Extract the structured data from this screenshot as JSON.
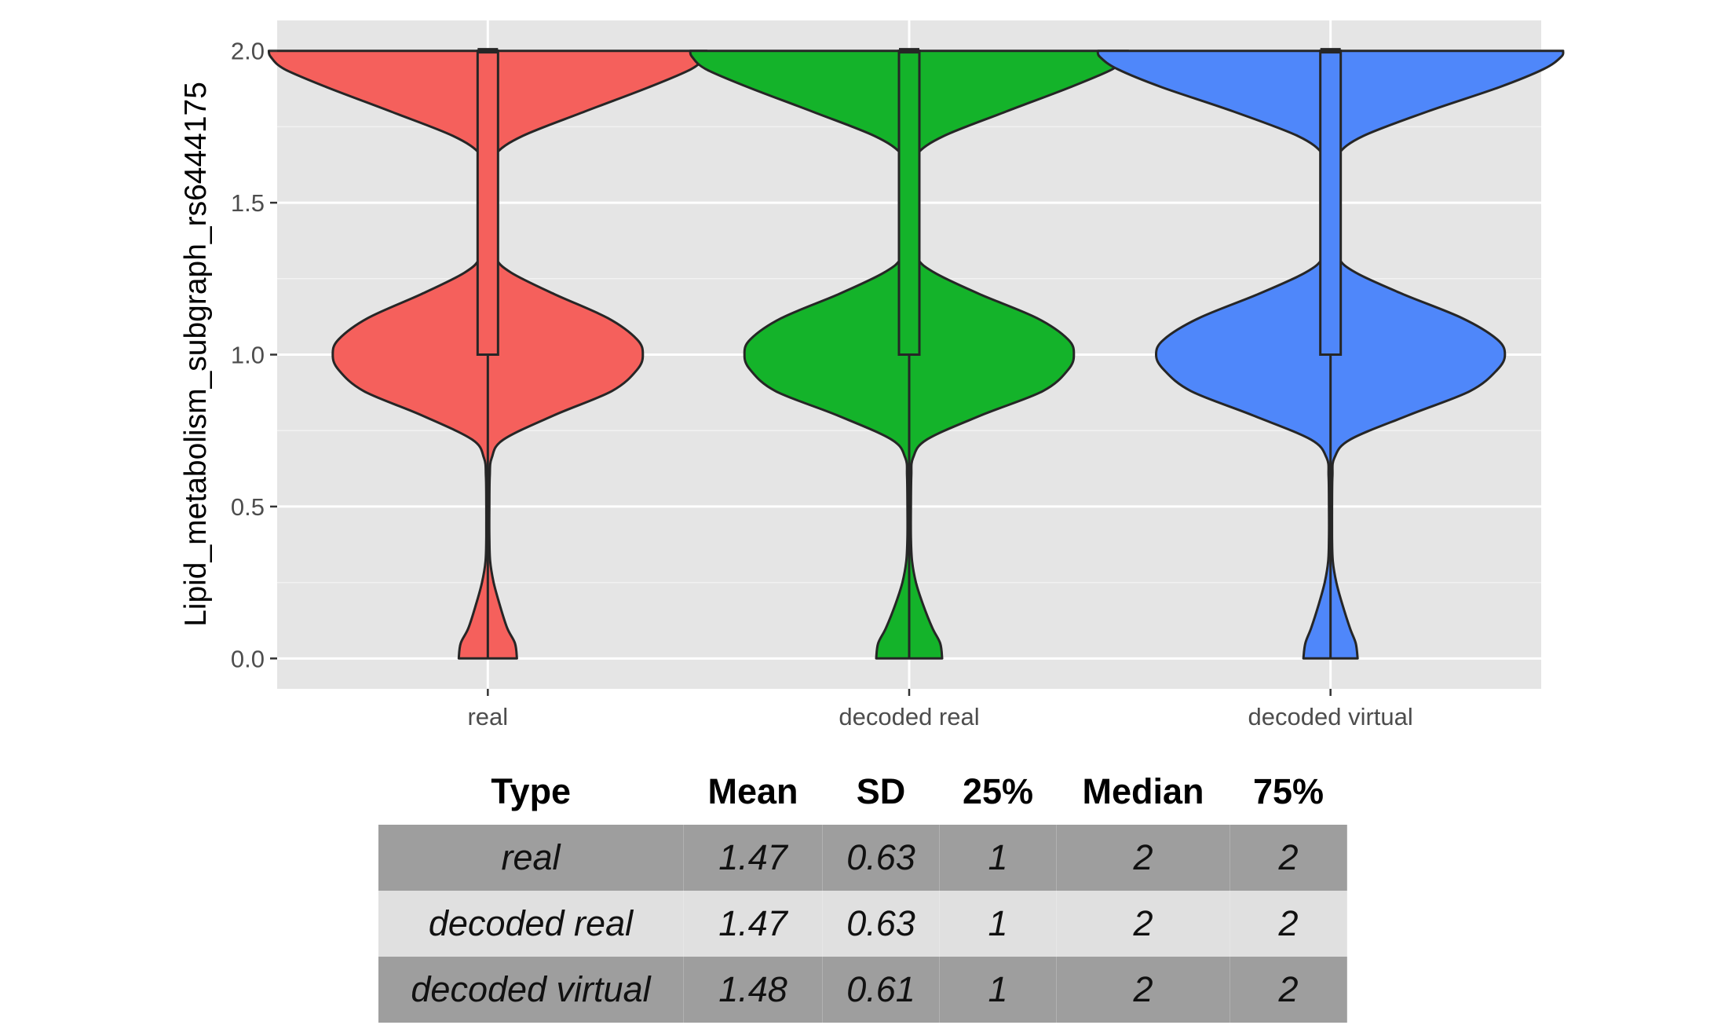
{
  "chart_data": {
    "type": "violin",
    "title": "",
    "xlabel": "",
    "ylabel": "Lipid_metabolism_subgraph_rs6444175",
    "ylim": [
      -0.1,
      2.1
    ],
    "yticks": [
      "0.0",
      "0.5",
      "1.0",
      "1.5",
      "2.0"
    ],
    "ytick_values": [
      0.0,
      0.5,
      1.0,
      1.5,
      2.0
    ],
    "categories": [
      "real",
      "decoded real",
      "decoded virtual"
    ],
    "grid": true,
    "legend": "none",
    "panel_color": "#e5e5e5",
    "outline_color": "#262626",
    "series": [
      {
        "category": "real",
        "color": "#f5605c",
        "box": {
          "min": 0,
          "q1": 1,
          "median": 2,
          "q3": 2,
          "max": 2
        },
        "density": [
          [
            0.0,
            0.15
          ],
          [
            0.05,
            0.14
          ],
          [
            0.1,
            0.1
          ],
          [
            0.18,
            0.06
          ],
          [
            0.25,
            0.03
          ],
          [
            0.32,
            0.012
          ],
          [
            0.4,
            0.008
          ],
          [
            0.5,
            0.008
          ],
          [
            0.6,
            0.01
          ],
          [
            0.66,
            0.02
          ],
          [
            0.72,
            0.08
          ],
          [
            0.8,
            0.34
          ],
          [
            0.88,
            0.64
          ],
          [
            0.95,
            0.77
          ],
          [
            1.0,
            0.8
          ],
          [
            1.05,
            0.77
          ],
          [
            1.12,
            0.62
          ],
          [
            1.2,
            0.34
          ],
          [
            1.27,
            0.12
          ],
          [
            1.32,
            0.04
          ],
          [
            1.4,
            0.02
          ],
          [
            1.5,
            0.02
          ],
          [
            1.6,
            0.025
          ],
          [
            1.66,
            0.04
          ],
          [
            1.72,
            0.18
          ],
          [
            1.8,
            0.5
          ],
          [
            1.88,
            0.83
          ],
          [
            1.94,
            1.05
          ],
          [
            1.98,
            1.12
          ],
          [
            2.0,
            1.13
          ]
        ]
      },
      {
        "category": "decoded real",
        "color": "#14b32a",
        "box": {
          "min": 0,
          "q1": 1,
          "median": 2,
          "q3": 2,
          "max": 2
        },
        "density": [
          [
            0.0,
            0.17
          ],
          [
            0.05,
            0.16
          ],
          [
            0.1,
            0.12
          ],
          [
            0.18,
            0.07
          ],
          [
            0.25,
            0.035
          ],
          [
            0.32,
            0.015
          ],
          [
            0.4,
            0.009
          ],
          [
            0.5,
            0.009
          ],
          [
            0.6,
            0.011
          ],
          [
            0.66,
            0.02
          ],
          [
            0.72,
            0.09
          ],
          [
            0.8,
            0.37
          ],
          [
            0.88,
            0.69
          ],
          [
            0.95,
            0.82
          ],
          [
            1.0,
            0.85
          ],
          [
            1.05,
            0.82
          ],
          [
            1.12,
            0.66
          ],
          [
            1.2,
            0.36
          ],
          [
            1.27,
            0.13
          ],
          [
            1.32,
            0.04
          ],
          [
            1.4,
            0.02
          ],
          [
            1.5,
            0.02
          ],
          [
            1.6,
            0.025
          ],
          [
            1.66,
            0.04
          ],
          [
            1.72,
            0.18
          ],
          [
            1.8,
            0.5
          ],
          [
            1.88,
            0.83
          ],
          [
            1.94,
            1.05
          ],
          [
            1.98,
            1.12
          ],
          [
            2.0,
            1.13
          ]
        ]
      },
      {
        "category": "decoded virtual",
        "color": "#4f87fa",
        "box": {
          "min": 0,
          "q1": 1,
          "median": 2,
          "q3": 2,
          "max": 2
        },
        "density": [
          [
            0.0,
            0.14
          ],
          [
            0.05,
            0.13
          ],
          [
            0.1,
            0.1
          ],
          [
            0.18,
            0.06
          ],
          [
            0.25,
            0.03
          ],
          [
            0.32,
            0.012
          ],
          [
            0.4,
            0.008
          ],
          [
            0.5,
            0.008
          ],
          [
            0.6,
            0.01
          ],
          [
            0.66,
            0.02
          ],
          [
            0.72,
            0.1
          ],
          [
            0.8,
            0.4
          ],
          [
            0.88,
            0.72
          ],
          [
            0.95,
            0.86
          ],
          [
            1.0,
            0.9
          ],
          [
            1.05,
            0.86
          ],
          [
            1.12,
            0.68
          ],
          [
            1.2,
            0.37
          ],
          [
            1.27,
            0.13
          ],
          [
            1.32,
            0.04
          ],
          [
            1.4,
            0.02
          ],
          [
            1.5,
            0.02
          ],
          [
            1.6,
            0.025
          ],
          [
            1.66,
            0.04
          ],
          [
            1.72,
            0.17
          ],
          [
            1.8,
            0.5
          ],
          [
            1.88,
            0.87
          ],
          [
            1.94,
            1.1
          ],
          [
            1.98,
            1.19
          ],
          [
            2.0,
            1.2
          ]
        ]
      }
    ]
  },
  "table": {
    "headers": {
      "type": "Type",
      "mean": "Mean",
      "sd": "SD",
      "q1": "25%",
      "median": "Median",
      "q3": "75%"
    },
    "rows": [
      {
        "type": "real",
        "mean": "1.47",
        "sd": "0.63",
        "q1": "1",
        "median": "2",
        "q3": "2"
      },
      {
        "type": "decoded real",
        "mean": "1.47",
        "sd": "0.63",
        "q1": "1",
        "median": "2",
        "q3": "2"
      },
      {
        "type": "decoded virtual",
        "mean": "1.48",
        "sd": "0.61",
        "q1": "1",
        "median": "2",
        "q3": "2"
      }
    ]
  }
}
